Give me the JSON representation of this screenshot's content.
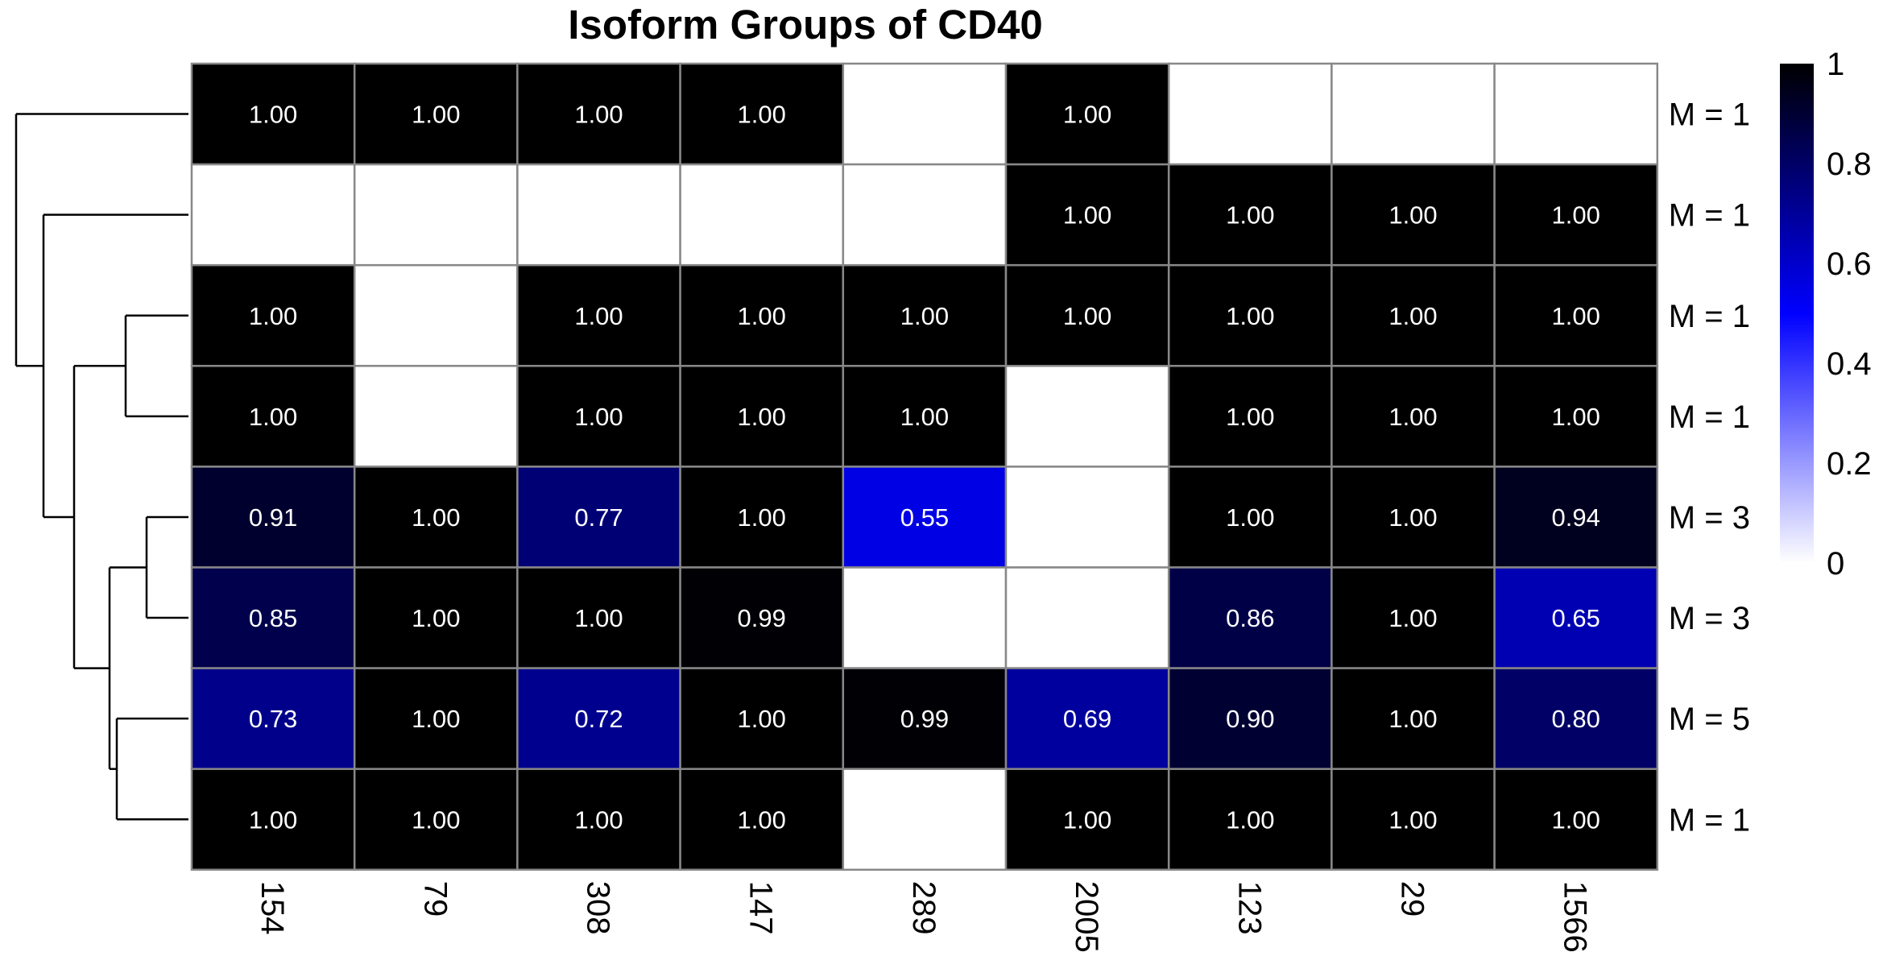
{
  "chart_data": {
    "type": "heatmap",
    "title": "Isoform Groups of CD40",
    "columns": [
      "154",
      "79",
      "308",
      "147",
      "289",
      "2005",
      "123",
      "29",
      "1566"
    ],
    "rows": [
      "M = 1",
      "M = 1",
      "M = 1",
      "M = 1",
      "M = 3",
      "M = 3",
      "M = 5",
      "M = 1"
    ],
    "values": [
      [
        1.0,
        1.0,
        1.0,
        1.0,
        null,
        1.0,
        null,
        null,
        null
      ],
      [
        null,
        null,
        null,
        null,
        null,
        1.0,
        1.0,
        1.0,
        1.0
      ],
      [
        1.0,
        null,
        1.0,
        1.0,
        1.0,
        1.0,
        1.0,
        1.0,
        1.0
      ],
      [
        1.0,
        null,
        1.0,
        1.0,
        1.0,
        null,
        1.0,
        1.0,
        1.0
      ],
      [
        0.91,
        1.0,
        0.77,
        1.0,
        0.55,
        null,
        1.0,
        1.0,
        0.94
      ],
      [
        0.85,
        1.0,
        1.0,
        0.99,
        null,
        null,
        0.86,
        1.0,
        0.65
      ],
      [
        0.73,
        1.0,
        0.72,
        1.0,
        0.99,
        0.69,
        0.9,
        1.0,
        0.8
      ],
      [
        1.0,
        1.0,
        1.0,
        1.0,
        null,
        1.0,
        1.0,
        1.0,
        1.0
      ]
    ],
    "value_labels": [
      [
        "1.00",
        "1.00",
        "1.00",
        "1.00",
        "",
        "1.00",
        "",
        "",
        ""
      ],
      [
        "",
        "",
        "",
        "",
        "",
        "1.00",
        "1.00",
        "1.00",
        "1.00"
      ],
      [
        "1.00",
        "",
        "1.00",
        "1.00",
        "1.00",
        "1.00",
        "1.00",
        "1.00",
        "1.00"
      ],
      [
        "1.00",
        "",
        "1.00",
        "1.00",
        "1.00",
        "",
        "1.00",
        "1.00",
        "1.00"
      ],
      [
        "0.91",
        "1.00",
        "0.77",
        "1.00",
        "0.55",
        "",
        "1.00",
        "1.00",
        "0.94"
      ],
      [
        "0.85",
        "1.00",
        "1.00",
        "0.99",
        "",
        "",
        "0.86",
        "1.00",
        "0.65"
      ],
      [
        "0.73",
        "1.00",
        "0.72",
        "1.00",
        "0.99",
        "0.69",
        "0.90",
        "1.00",
        "0.80"
      ],
      [
        "1.00",
        "1.00",
        "1.00",
        "1.00",
        "",
        "1.00",
        "1.00",
        "1.00",
        "1.00"
      ]
    ],
    "color_scale": {
      "min": 0,
      "max": 1,
      "ticks": [
        "0",
        "0.2",
        "0.4",
        "0.6",
        "0.8",
        "1"
      ],
      "colors": [
        "#ffffff",
        "#0000ff",
        "#000000"
      ]
    },
    "legend_placement": "right",
    "dendrogram_side": "left",
    "grid_color": "#888888"
  }
}
